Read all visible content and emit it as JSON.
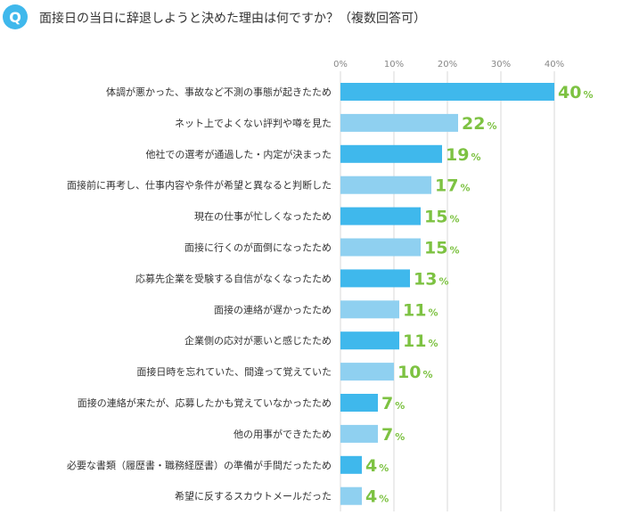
{
  "question_badge": "Q",
  "title": "面接日の当日に辞退しようと決めた理由は何ですか？（複数回答可）",
  "colors": {
    "dark_bar": "#3fb8ec",
    "light_bar": "#8fd0f0",
    "value_text": "#7dc242",
    "badge": "#3fb8ec",
    "grid": "#d8d8d8"
  },
  "chart_data": {
    "type": "bar",
    "orientation": "horizontal",
    "xlim": [
      0,
      50
    ],
    "ticks": [
      0,
      10,
      20,
      30,
      40
    ],
    "tick_labels": [
      "0%",
      "10%",
      "20%",
      "30%",
      "40%"
    ],
    "value_unit": "%",
    "grid": true,
    "categories": [
      "体調が悪かった、事故など不測の事態が起きたため",
      "ネット上でよくない評判や噂を見た",
      "他社での選考が通過した・内定が決まった",
      "面接前に再考し、仕事内容や条件が希望と異なると判断した",
      "現在の仕事が忙しくなったため",
      "面接に行くのが面倒になったため",
      "応募先企業を受験する自信がなくなったため",
      "面接の連絡が遅かったため",
      "企業側の応対が悪いと感じたため",
      "面接日時を忘れていた、間違って覚えていた",
      "面接の連絡が来たが、応募したかも覚えていなかったため",
      "他の用事ができたため",
      "必要な書類（履歴書・職務経歴書）の準備が手間だったため",
      "希望に反するスカウトメールだった"
    ],
    "values": [
      40,
      22,
      19,
      17,
      15,
      15,
      13,
      11,
      11,
      10,
      7,
      7,
      4,
      4
    ]
  }
}
